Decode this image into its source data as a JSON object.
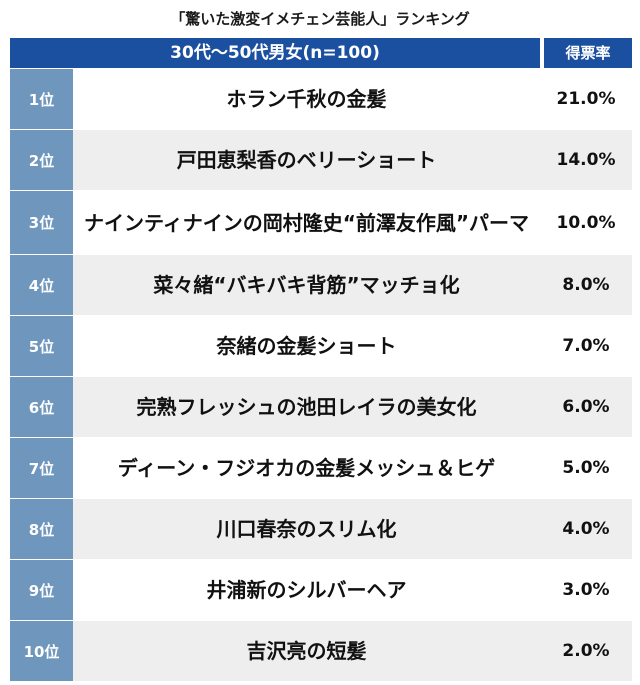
{
  "title": "「驚いた激変イメチェン芸能人」ランキング",
  "header": {
    "left": "30代〜50代男女(n=100)",
    "right": "得票率"
  },
  "chart_data": {
    "type": "table",
    "title": "「驚いた激変イメチェン芸能人」ランキング",
    "columns": [
      "30代〜50代男女(n=100)",
      "得票率"
    ],
    "rows": [
      {
        "rank": "1位",
        "name": "ホラン千秋の金髪",
        "pct": "21.0%",
        "value": 21.0
      },
      {
        "rank": "2位",
        "name": "戸田恵梨香のベリーショート",
        "pct": "14.0%",
        "value": 14.0
      },
      {
        "rank": "3位",
        "name": "ナインティナインの岡村隆史“前澤友作風”パーマ",
        "pct": "10.0%",
        "value": 10.0
      },
      {
        "rank": "4位",
        "name": "菜々緒“バキバキ背筋”マッチョ化",
        "pct": "8.0%",
        "value": 8.0
      },
      {
        "rank": "5位",
        "name": "奈緒の金髪ショート",
        "pct": "7.0%",
        "value": 7.0
      },
      {
        "rank": "6位",
        "name": "完熟フレッシュの池田レイラの美女化",
        "pct": "6.0%",
        "value": 6.0
      },
      {
        "rank": "7位",
        "name": "ディーン・フジオカの金髪メッシュ＆ヒゲ",
        "pct": "5.0%",
        "value": 5.0
      },
      {
        "rank": "8位",
        "name": "川口春奈のスリム化",
        "pct": "4.0%",
        "value": 4.0
      },
      {
        "rank": "9位",
        "name": "井浦新のシルバーヘア",
        "pct": "3.0%",
        "value": 3.0
      },
      {
        "rank": "10位",
        "name": "吉沢亮の短髪",
        "pct": "2.0%",
        "value": 2.0
      }
    ]
  },
  "colors": {
    "header_bg": "#1b4fa0",
    "rank_bg": "#6f96bd",
    "row_alt_bg": "#eeeeee"
  }
}
